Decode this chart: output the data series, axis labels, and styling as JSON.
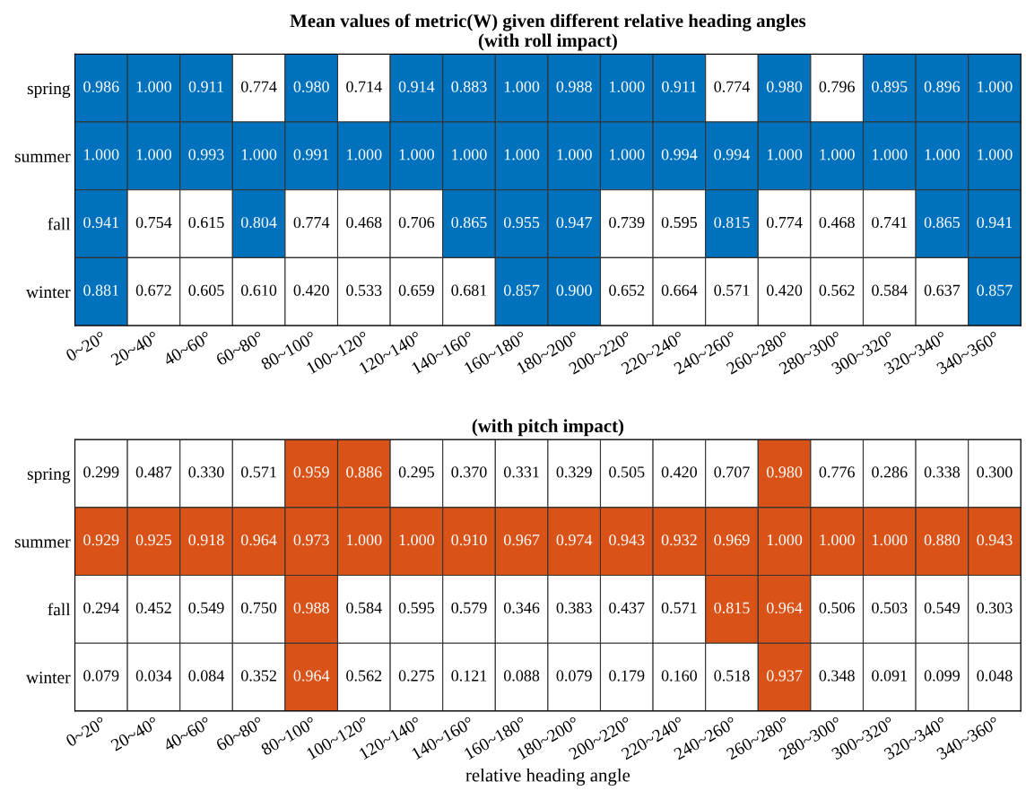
{
  "chart_data": [
    {
      "type": "heatmap",
      "title": "Mean values of metric(W) given different relative heading angles",
      "subtitle": "(with roll impact)",
      "categories": [
        "0~20°",
        "20~40°",
        "40~60°",
        "60~80°",
        "80~100°",
        "100~120°",
        "120~140°",
        "140~160°",
        "160~180°",
        "180~200°",
        "200~220°",
        "220~240°",
        "240~260°",
        "260~280°",
        "280~300°",
        "300~320°",
        "320~340°",
        "340~360°"
      ],
      "y_categories": [
        "spring",
        "summer",
        "fall",
        "winter"
      ],
      "cells": [
        [
          0.986,
          1.0,
          0.911,
          0.774,
          0.98,
          0.714,
          0.914,
          0.883,
          1.0,
          0.988,
          1.0,
          0.911,
          0.774,
          0.98,
          0.796,
          0.895,
          0.896,
          1.0
        ],
        [
          1.0,
          1.0,
          0.993,
          1.0,
          0.991,
          1.0,
          1.0,
          1.0,
          1.0,
          1.0,
          1.0,
          0.994,
          0.994,
          1.0,
          1.0,
          1.0,
          1.0,
          1.0
        ],
        [
          0.941,
          0.754,
          0.615,
          0.804,
          0.774,
          0.468,
          0.706,
          0.865,
          0.955,
          0.947,
          0.739,
          0.595,
          0.815,
          0.774,
          0.468,
          0.741,
          0.865,
          0.941
        ],
        [
          0.881,
          0.672,
          0.605,
          0.61,
          0.42,
          0.533,
          0.659,
          0.681,
          0.857,
          0.9,
          0.652,
          0.664,
          0.571,
          0.42,
          0.562,
          0.584,
          0.637,
          0.857
        ]
      ],
      "cell_labels": [
        [
          "0.986",
          "1.000",
          "0.911",
          "0.774",
          "0.980",
          "0.714",
          "0.914",
          "0.883",
          "1.000",
          "0.988",
          "1.000",
          "0.911",
          "0.774",
          "0.980",
          "0.796",
          "0.895",
          "0.896",
          "1.000"
        ],
        [
          "1.000",
          "1.000",
          "0.993",
          "1.000",
          "0.991",
          "1.000",
          "1.000",
          "1.000",
          "1.000",
          "1.000",
          "1.000",
          "0.994",
          "0.994",
          "1.000",
          "1.000",
          "1.000",
          "1.000",
          "1.000"
        ],
        [
          "0.941",
          "0.754",
          "0.615",
          "0.804",
          "0.774",
          "0.468",
          "0.706",
          "0.865",
          "0.955",
          "0.947",
          "0.739",
          "0.595",
          "0.815",
          "0.774",
          "0.468",
          "0.741",
          "0.865",
          "0.941"
        ],
        [
          "0.881",
          "0.672",
          "0.605",
          "0.610",
          "0.420",
          "0.533",
          "0.659",
          "0.681",
          "0.857",
          "0.900",
          "0.652",
          "0.664",
          "0.571",
          "0.420",
          "0.562",
          "0.584",
          "0.637",
          "0.857"
        ]
      ],
      "colors": [
        [
          "#0072bd",
          "#0072bd",
          "#0072bd",
          "#ffffff",
          "#0072bd",
          "#ffffff",
          "#0072bd",
          "#0072bd",
          "#0072bd",
          "#0072bd",
          "#0072bd",
          "#0072bd",
          "#ffffff",
          "#0072bd",
          "#ffffff",
          "#0072bd",
          "#0072bd",
          "#0072bd"
        ],
        [
          "#0072bd",
          "#0072bd",
          "#0072bd",
          "#0072bd",
          "#0072bd",
          "#0072bd",
          "#0072bd",
          "#0072bd",
          "#0072bd",
          "#0072bd",
          "#0072bd",
          "#0072bd",
          "#0072bd",
          "#0072bd",
          "#0072bd",
          "#0072bd",
          "#0072bd",
          "#0072bd"
        ],
        [
          "#0072bd",
          "#ffffff",
          "#ffffff",
          "#0072bd",
          "#ffffff",
          "#ffffff",
          "#ffffff",
          "#0072bd",
          "#0072bd",
          "#0072bd",
          "#ffffff",
          "#ffffff",
          "#0072bd",
          "#ffffff",
          "#ffffff",
          "#ffffff",
          "#0072bd",
          "#0072bd"
        ],
        [
          "#0072bd",
          "#ffffff",
          "#ffffff",
          "#ffffff",
          "#ffffff",
          "#ffffff",
          "#ffffff",
          "#ffffff",
          "#0072bd",
          "#0072bd",
          "#ffffff",
          "#ffffff",
          "#ffffff",
          "#ffffff",
          "#ffffff",
          "#ffffff",
          "#ffffff",
          "#0072bd"
        ]
      ]
    },
    {
      "type": "heatmap",
      "title": "(with pitch impact)",
      "xlabel": "relative heading angle",
      "categories": [
        "0~20°",
        "20~40°",
        "40~60°",
        "60~80°",
        "80~100°",
        "100~120°",
        "120~140°",
        "140~160°",
        "160~180°",
        "180~200°",
        "200~220°",
        "220~240°",
        "240~260°",
        "260~280°",
        "280~300°",
        "300~320°",
        "320~340°",
        "340~360°"
      ],
      "y_categories": [
        "spring",
        "summer",
        "fall",
        "winter"
      ],
      "cells": [
        [
          0.299,
          0.487,
          0.33,
          0.571,
          0.959,
          0.886,
          0.295,
          0.37,
          0.331,
          0.329,
          0.505,
          0.42,
          0.707,
          0.98,
          0.776,
          0.286,
          0.338,
          0.3
        ],
        [
          0.929,
          0.925,
          0.918,
          0.964,
          0.973,
          1.0,
          1.0,
          0.91,
          0.967,
          0.974,
          0.943,
          0.932,
          0.969,
          1.0,
          1.0,
          1.0,
          0.88,
          0.943
        ],
        [
          0.294,
          0.452,
          0.549,
          0.75,
          0.988,
          0.584,
          0.595,
          0.579,
          0.346,
          0.383,
          0.437,
          0.571,
          0.815,
          0.964,
          0.506,
          0.503,
          0.549,
          0.303
        ],
        [
          0.079,
          0.034,
          0.084,
          0.352,
          0.964,
          0.562,
          0.275,
          0.121,
          0.088,
          0.079,
          0.179,
          0.16,
          0.518,
          0.937,
          0.348,
          0.091,
          0.099,
          0.048
        ]
      ],
      "cell_labels": [
        [
          "0.299",
          "0.487",
          "0.330",
          "0.571",
          "0.959",
          "0.886",
          "0.295",
          "0.370",
          "0.331",
          "0.329",
          "0.505",
          "0.420",
          "0.707",
          "0.980",
          "0.776",
          "0.286",
          "0.338",
          "0.300"
        ],
        [
          "0.929",
          "0.925",
          "0.918",
          "0.964",
          "0.973",
          "1.000",
          "1.000",
          "0.910",
          "0.967",
          "0.974",
          "0.943",
          "0.932",
          "0.969",
          "1.000",
          "1.000",
          "1.000",
          "0.880",
          "0.943"
        ],
        [
          "0.294",
          "0.452",
          "0.549",
          "0.750",
          "0.988",
          "0.584",
          "0.595",
          "0.579",
          "0.346",
          "0.383",
          "0.437",
          "0.571",
          "0.815",
          "0.964",
          "0.506",
          "0.503",
          "0.549",
          "0.303"
        ],
        [
          "0.079",
          "0.034",
          "0.084",
          "0.352",
          "0.964",
          "0.562",
          "0.275",
          "0.121",
          "0.088",
          "0.079",
          "0.179",
          "0.160",
          "0.518",
          "0.937",
          "0.348",
          "0.091",
          "0.099",
          "0.048"
        ]
      ],
      "colors": [
        [
          "#ffffff",
          "#ffffff",
          "#ffffff",
          "#ffffff",
          "#d95319",
          "#d95319",
          "#ffffff",
          "#ffffff",
          "#ffffff",
          "#ffffff",
          "#ffffff",
          "#ffffff",
          "#ffffff",
          "#d95319",
          "#ffffff",
          "#ffffff",
          "#ffffff",
          "#ffffff"
        ],
        [
          "#d95319",
          "#d95319",
          "#d95319",
          "#d95319",
          "#d95319",
          "#d95319",
          "#d95319",
          "#d95319",
          "#d95319",
          "#d95319",
          "#d95319",
          "#d95319",
          "#d95319",
          "#d95319",
          "#d95319",
          "#d95319",
          "#d95319",
          "#d95319"
        ],
        [
          "#ffffff",
          "#ffffff",
          "#ffffff",
          "#ffffff",
          "#d95319",
          "#ffffff",
          "#ffffff",
          "#ffffff",
          "#ffffff",
          "#ffffff",
          "#ffffff",
          "#ffffff",
          "#d95319",
          "#d95319",
          "#ffffff",
          "#ffffff",
          "#ffffff",
          "#ffffff"
        ],
        [
          "#ffffff",
          "#ffffff",
          "#ffffff",
          "#ffffff",
          "#d95319",
          "#ffffff",
          "#ffffff",
          "#ffffff",
          "#ffffff",
          "#ffffff",
          "#ffffff",
          "#ffffff",
          "#ffffff",
          "#d95319",
          "#ffffff",
          "#ffffff",
          "#ffffff",
          "#ffffff"
        ]
      ]
    }
  ]
}
